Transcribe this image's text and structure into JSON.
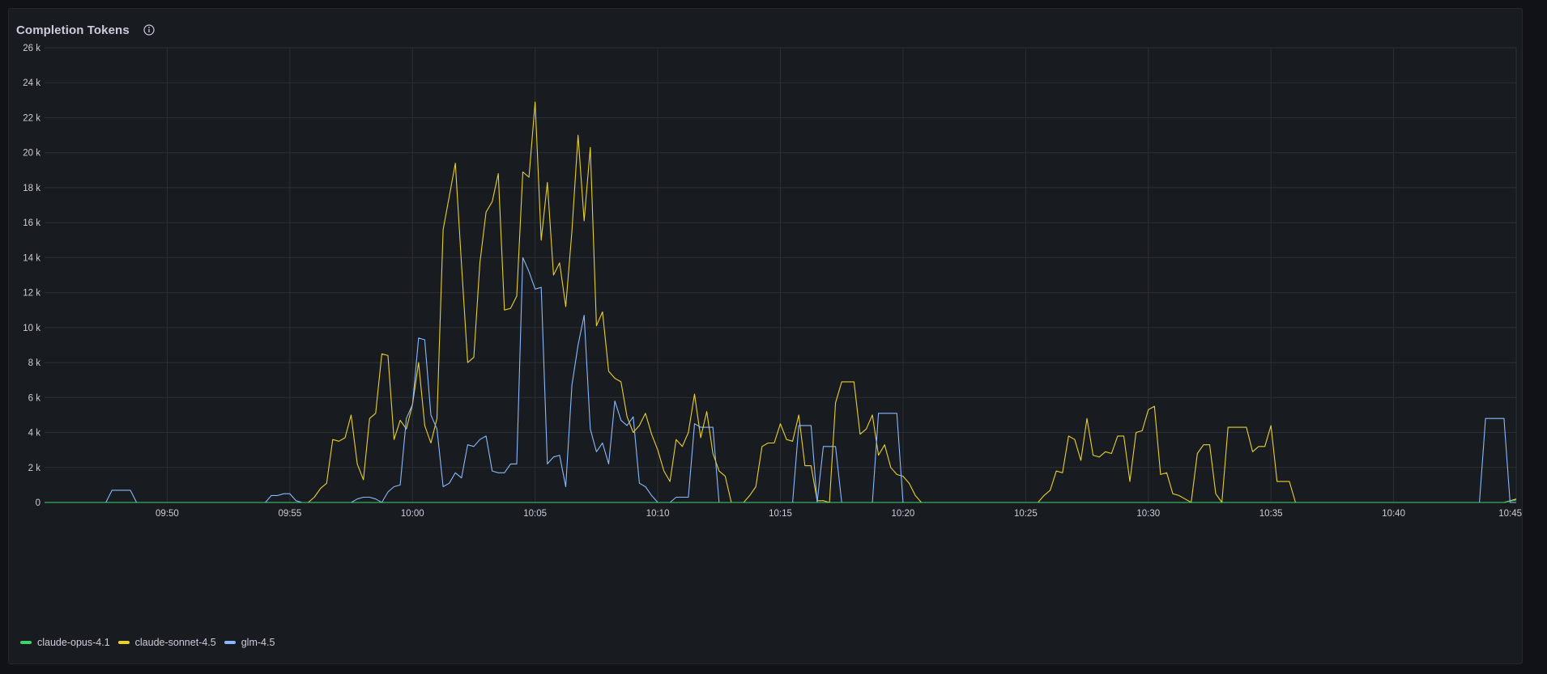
{
  "panel": {
    "title": "Completion Tokens",
    "info_icon": "info-icon"
  },
  "colors": {
    "background": "#181b1f",
    "grid": "#2c2f35",
    "text": "#ccccdc",
    "claude-opus-4.1": "#3fd16b",
    "claude-sonnet-4.5": "#e8d02f",
    "glm-4.5": "#8ab8ff"
  },
  "chart_data": {
    "type": "line",
    "title": "Completion Tokens",
    "x_unit": "time",
    "xlim": [
      "09:45",
      "10:45"
    ],
    "ylim": [
      0,
      26000
    ],
    "x_ticks": [
      "09:50",
      "09:55",
      "10:00",
      "10:05",
      "10:10",
      "10:15",
      "10:20",
      "10:25",
      "10:30",
      "10:35",
      "10:40",
      "10:45"
    ],
    "y_ticks": [
      "0",
      "2 k",
      "4 k",
      "6 k",
      "8 k",
      "10 k",
      "12 k",
      "14 k",
      "16 k",
      "18 k",
      "20 k",
      "22 k",
      "24 k",
      "26 k"
    ],
    "y_tick_values": [
      0,
      2000,
      4000,
      6000,
      8000,
      10000,
      12000,
      14000,
      16000,
      18000,
      20000,
      22000,
      24000,
      26000
    ],
    "grid": true,
    "legend_position": "bottom-left",
    "series": [
      {
        "name": "claude-opus-4.1",
        "color": "#3fd16b",
        "points": [
          [
            "09:45:00",
            0
          ],
          [
            "10:44:30",
            0
          ],
          [
            "10:45:00",
            150
          ]
        ]
      },
      {
        "name": "claude-sonnet-4.5",
        "color": "#e8d02f",
        "points": [
          [
            "09:45:00",
            0
          ],
          [
            "09:55:45",
            0
          ],
          [
            "09:56:00",
            300
          ],
          [
            "09:56:15",
            800
          ],
          [
            "09:56:30",
            1100
          ],
          [
            "09:56:45",
            3600
          ],
          [
            "09:57:00",
            3500
          ],
          [
            "09:57:15",
            3700
          ],
          [
            "09:57:30",
            5000
          ],
          [
            "09:57:45",
            2200
          ],
          [
            "09:58:00",
            1300
          ],
          [
            "09:58:15",
            4800
          ],
          [
            "09:58:30",
            5100
          ],
          [
            "09:58:45",
            8500
          ],
          [
            "09:59:00",
            8400
          ],
          [
            "09:59:15",
            3600
          ],
          [
            "09:59:30",
            4700
          ],
          [
            "09:59:45",
            4200
          ],
          [
            "10:00:00",
            5600
          ],
          [
            "10:00:15",
            8000
          ],
          [
            "10:00:30",
            4400
          ],
          [
            "10:00:45",
            3400
          ],
          [
            "10:01:00",
            4800
          ],
          [
            "10:01:15",
            15600
          ],
          [
            "10:01:30",
            17500
          ],
          [
            "10:01:45",
            19400
          ],
          [
            "10:02:00",
            13600
          ],
          [
            "10:02:15",
            8000
          ],
          [
            "10:02:30",
            8300
          ],
          [
            "10:02:45",
            13700
          ],
          [
            "10:03:00",
            16600
          ],
          [
            "10:03:15",
            17200
          ],
          [
            "10:03:30",
            18800
          ],
          [
            "10:03:45",
            11000
          ],
          [
            "10:04:00",
            11100
          ],
          [
            "10:04:15",
            11800
          ],
          [
            "10:04:30",
            18900
          ],
          [
            "10:04:45",
            18600
          ],
          [
            "10:05:00",
            22900
          ],
          [
            "10:05:15",
            15000
          ],
          [
            "10:05:30",
            18300
          ],
          [
            "10:05:45",
            13000
          ],
          [
            "10:06:00",
            13700
          ],
          [
            "10:06:15",
            11200
          ],
          [
            "10:06:30",
            15500
          ],
          [
            "10:06:45",
            21000
          ],
          [
            "10:07:00",
            16100
          ],
          [
            "10:07:15",
            20300
          ],
          [
            "10:07:30",
            10100
          ],
          [
            "10:07:45",
            10900
          ],
          [
            "10:08:00",
            7500
          ],
          [
            "10:08:15",
            7100
          ],
          [
            "10:08:30",
            6900
          ],
          [
            "10:08:45",
            4900
          ],
          [
            "10:09:00",
            4000
          ],
          [
            "10:09:15",
            4400
          ],
          [
            "10:09:30",
            5100
          ],
          [
            "10:09:45",
            3900
          ],
          [
            "10:10:00",
            3000
          ],
          [
            "10:10:15",
            1800
          ],
          [
            "10:10:30",
            1200
          ],
          [
            "10:10:45",
            3600
          ],
          [
            "10:11:00",
            3200
          ],
          [
            "10:11:15",
            4000
          ],
          [
            "10:11:30",
            6200
          ],
          [
            "10:11:45",
            3700
          ],
          [
            "10:12:00",
            5200
          ],
          [
            "10:12:15",
            2800
          ],
          [
            "10:12:30",
            1800
          ],
          [
            "10:12:45",
            1500
          ],
          [
            "10:13:00",
            0
          ],
          [
            "10:13:30",
            0
          ],
          [
            "10:13:45",
            400
          ],
          [
            "10:14:00",
            900
          ],
          [
            "10:14:15",
            3200
          ],
          [
            "10:14:30",
            3400
          ],
          [
            "10:14:45",
            3400
          ],
          [
            "10:15:00",
            4500
          ],
          [
            "10:15:15",
            3600
          ],
          [
            "10:15:30",
            3500
          ],
          [
            "10:15:45",
            5000
          ],
          [
            "10:16:00",
            2100
          ],
          [
            "10:16:15",
            2100
          ],
          [
            "10:16:30",
            100
          ],
          [
            "10:16:45",
            100
          ],
          [
            "10:17:00",
            0
          ],
          [
            "10:17:15",
            5700
          ],
          [
            "10:17:30",
            6900
          ],
          [
            "10:17:45",
            6900
          ],
          [
            "10:18:00",
            6900
          ],
          [
            "10:18:15",
            3900
          ],
          [
            "10:18:30",
            4200
          ],
          [
            "10:18:45",
            5000
          ],
          [
            "10:19:00",
            2700
          ],
          [
            "10:19:15",
            3300
          ],
          [
            "10:19:30",
            2000
          ],
          [
            "10:19:45",
            1600
          ],
          [
            "10:20:00",
            1500
          ],
          [
            "10:20:15",
            1100
          ],
          [
            "10:20:30",
            400
          ],
          [
            "10:20:45",
            0
          ],
          [
            "10:25:30",
            0
          ],
          [
            "10:25:45",
            400
          ],
          [
            "10:26:00",
            700
          ],
          [
            "10:26:15",
            1800
          ],
          [
            "10:26:30",
            1700
          ],
          [
            "10:26:45",
            3800
          ],
          [
            "10:27:00",
            3600
          ],
          [
            "10:27:15",
            2400
          ],
          [
            "10:27:30",
            4800
          ],
          [
            "10:27:45",
            2700
          ],
          [
            "10:28:00",
            2600
          ],
          [
            "10:28:15",
            2900
          ],
          [
            "10:28:30",
            2800
          ],
          [
            "10:28:45",
            3800
          ],
          [
            "10:29:00",
            3800
          ],
          [
            "10:29:15",
            1200
          ],
          [
            "10:29:30",
            4000
          ],
          [
            "10:29:45",
            4100
          ],
          [
            "10:30:00",
            5300
          ],
          [
            "10:30:15",
            5500
          ],
          [
            "10:30:30",
            1600
          ],
          [
            "10:30:45",
            1700
          ],
          [
            "10:31:00",
            500
          ],
          [
            "10:31:15",
            400
          ],
          [
            "10:31:30",
            200
          ],
          [
            "10:31:45",
            0
          ],
          [
            "10:32:00",
            2800
          ],
          [
            "10:32:15",
            3300
          ],
          [
            "10:32:30",
            3300
          ],
          [
            "10:32:45",
            500
          ],
          [
            "10:33:00",
            0
          ],
          [
            "10:33:15",
            4300
          ],
          [
            "10:33:30",
            4300
          ],
          [
            "10:33:45",
            4300
          ],
          [
            "10:34:00",
            4300
          ],
          [
            "10:34:15",
            2900
          ],
          [
            "10:34:30",
            3200
          ],
          [
            "10:34:45",
            3200
          ],
          [
            "10:35:00",
            4400
          ],
          [
            "10:35:15",
            1200
          ],
          [
            "10:35:30",
            1200
          ],
          [
            "10:35:45",
            1200
          ],
          [
            "10:36:00",
            0
          ],
          [
            "10:44:30",
            0
          ],
          [
            "10:45:00",
            200
          ]
        ]
      },
      {
        "name": "glm-4.5",
        "color": "#8ab8ff",
        "points": [
          [
            "09:45:00",
            0
          ],
          [
            "09:47:30",
            0
          ],
          [
            "09:47:45",
            700
          ],
          [
            "09:48:00",
            700
          ],
          [
            "09:48:15",
            700
          ],
          [
            "09:48:30",
            700
          ],
          [
            "09:48:45",
            0
          ],
          [
            "09:54:00",
            0
          ],
          [
            "09:54:15",
            400
          ],
          [
            "09:54:30",
            400
          ],
          [
            "09:54:45",
            500
          ],
          [
            "09:55:00",
            500
          ],
          [
            "09:55:15",
            100
          ],
          [
            "09:55:30",
            0
          ],
          [
            "09:57:30",
            0
          ],
          [
            "09:57:45",
            200
          ],
          [
            "09:58:00",
            300
          ],
          [
            "09:58:15",
            300
          ],
          [
            "09:58:30",
            200
          ],
          [
            "09:58:45",
            0
          ],
          [
            "09:59:00",
            600
          ],
          [
            "09:59:15",
            900
          ],
          [
            "09:59:30",
            1000
          ],
          [
            "09:59:45",
            4800
          ],
          [
            "10:00:00",
            5600
          ],
          [
            "10:00:15",
            9400
          ],
          [
            "10:00:30",
            9300
          ],
          [
            "10:00:45",
            5000
          ],
          [
            "10:01:00",
            4200
          ],
          [
            "10:01:15",
            900
          ],
          [
            "10:01:30",
            1100
          ],
          [
            "10:01:45",
            1700
          ],
          [
            "10:02:00",
            1400
          ],
          [
            "10:02:15",
            3300
          ],
          [
            "10:02:30",
            3200
          ],
          [
            "10:02:45",
            3600
          ],
          [
            "10:03:00",
            3800
          ],
          [
            "10:03:15",
            1800
          ],
          [
            "10:03:30",
            1700
          ],
          [
            "10:03:45",
            1700
          ],
          [
            "10:04:00",
            2200
          ],
          [
            "10:04:15",
            2200
          ],
          [
            "10:04:30",
            14000
          ],
          [
            "10:04:45",
            13200
          ],
          [
            "10:05:00",
            12200
          ],
          [
            "10:05:15",
            12300
          ],
          [
            "10:05:30",
            2200
          ],
          [
            "10:05:45",
            2600
          ],
          [
            "10:06:00",
            2700
          ],
          [
            "10:06:15",
            900
          ],
          [
            "10:06:30",
            6700
          ],
          [
            "10:06:45",
            9000
          ],
          [
            "10:07:00",
            10700
          ],
          [
            "10:07:15",
            4200
          ],
          [
            "10:07:30",
            2900
          ],
          [
            "10:07:45",
            3400
          ],
          [
            "10:08:00",
            2200
          ],
          [
            "10:08:15",
            5800
          ],
          [
            "10:08:30",
            4700
          ],
          [
            "10:08:45",
            4400
          ],
          [
            "10:09:00",
            4900
          ],
          [
            "10:09:15",
            1100
          ],
          [
            "10:09:30",
            900
          ],
          [
            "10:09:45",
            400
          ],
          [
            "10:10:00",
            0
          ],
          [
            "10:10:30",
            0
          ],
          [
            "10:10:45",
            300
          ],
          [
            "10:11:00",
            300
          ],
          [
            "10:11:15",
            300
          ],
          [
            "10:11:30",
            4500
          ],
          [
            "10:11:45",
            4300
          ],
          [
            "10:12:00",
            4300
          ],
          [
            "10:12:15",
            4300
          ],
          [
            "10:12:30",
            0
          ],
          [
            "10:15:30",
            0
          ],
          [
            "10:15:45",
            4400
          ],
          [
            "10:16:00",
            4400
          ],
          [
            "10:16:15",
            4400
          ],
          [
            "10:16:30",
            0
          ],
          [
            "10:16:45",
            3200
          ],
          [
            "10:17:00",
            3200
          ],
          [
            "10:17:15",
            3200
          ],
          [
            "10:17:30",
            0
          ],
          [
            "10:18:45",
            0
          ],
          [
            "10:19:00",
            5100
          ],
          [
            "10:19:15",
            5100
          ],
          [
            "10:19:30",
            5100
          ],
          [
            "10:19:45",
            5100
          ],
          [
            "10:20:00",
            0
          ],
          [
            "10:43:30",
            0
          ],
          [
            "10:43:45",
            4800
          ],
          [
            "10:44:00",
            4800
          ],
          [
            "10:44:15",
            4800
          ],
          [
            "10:44:30",
            4800
          ],
          [
            "10:44:45",
            0
          ],
          [
            "10:45:00",
            0
          ]
        ]
      }
    ]
  },
  "legend": {
    "items": [
      {
        "name": "claude-opus-4.1",
        "color": "#3fd16b"
      },
      {
        "name": "claude-sonnet-4.5",
        "color": "#e8d02f"
      },
      {
        "name": "glm-4.5",
        "color": "#8ab8ff"
      }
    ]
  }
}
